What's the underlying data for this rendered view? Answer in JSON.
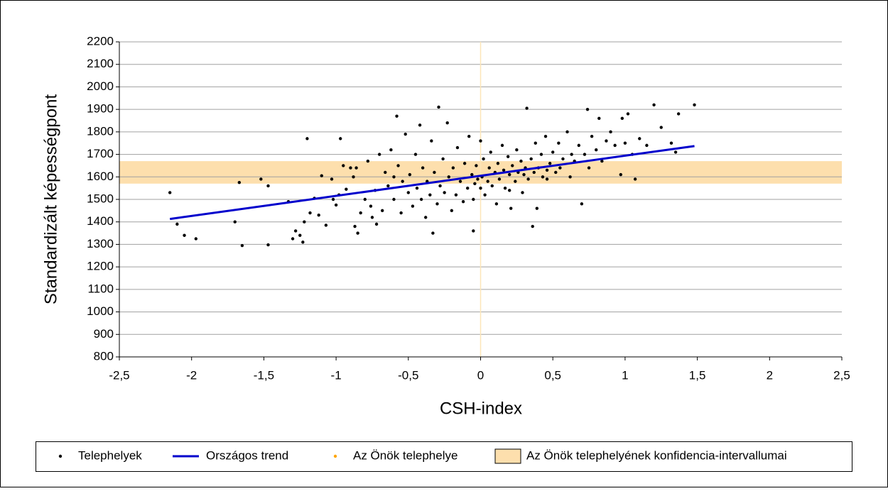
{
  "chart_data": {
    "type": "scatter",
    "xlabel": "CSH-index",
    "ylabel": "Standardizált képességpont",
    "xlim": [
      -2.5,
      2.5
    ],
    "ylim": [
      800,
      2200
    ],
    "xticks": [
      {
        "value": -2.5,
        "label": "-2,5"
      },
      -2,
      {
        "value": -1.5,
        "label": "-1,5"
      },
      -1,
      {
        "value": -0.5,
        "label": "-0,5"
      },
      0,
      {
        "value": 0.5,
        "label": "0,5"
      },
      1,
      {
        "value": 1.5,
        "label": "1,5"
      },
      2,
      {
        "value": 2.5,
        "label": "2,5"
      }
    ],
    "yticks": [
      800,
      900,
      1000,
      1100,
      1200,
      1300,
      1400,
      1500,
      1600,
      1700,
      1800,
      1900,
      2000,
      2100,
      2200
    ],
    "grid": true,
    "reference_x": 0,
    "reference_color": "#fde6b8",
    "band": {
      "name": "Az Önök telephelyének konfidencia-intervallumai",
      "color": "#fddfad",
      "range": [
        1570,
        1670
      ]
    },
    "series": [
      {
        "name": "Telephelyek",
        "color": "#000000",
        "style": "points",
        "x": [
          -2.15,
          -2.1,
          -2.05,
          -1.97,
          -1.7,
          -1.67,
          -1.65,
          -1.52,
          -1.47,
          -1.47,
          -1.33,
          -1.3,
          -1.28,
          -1.25,
          -1.23,
          -1.22,
          -1.2,
          -1.18,
          -1.15,
          -1.12,
          -1.1,
          -1.07,
          -1.03,
          -1.02,
          -1.0,
          -0.98,
          -0.97,
          -0.95,
          -0.93,
          -0.9,
          -0.88,
          -0.87,
          -0.85,
          -0.83,
          -0.8,
          -0.78,
          -0.76,
          -0.75,
          -0.73,
          -0.72,
          -0.7,
          -0.68,
          -0.66,
          -0.64,
          -0.62,
          -0.6,
          -0.58,
          -0.57,
          -0.55,
          -0.54,
          -0.52,
          -0.5,
          -0.49,
          -0.47,
          -0.45,
          -0.44,
          -0.42,
          -0.41,
          -0.4,
          -0.38,
          -0.37,
          -0.35,
          -0.34,
          -0.32,
          -0.3,
          -0.29,
          -0.28,
          -0.26,
          -0.25,
          -0.23,
          -0.22,
          -0.2,
          -0.19,
          -0.17,
          -0.16,
          -0.14,
          -0.12,
          -0.11,
          -0.09,
          -0.08,
          -0.06,
          -0.05,
          -0.04,
          -0.03,
          -0.02,
          0.0,
          0.0,
          0.01,
          0.02,
          0.03,
          0.05,
          0.06,
          0.07,
          0.08,
          0.1,
          0.11,
          0.12,
          0.13,
          0.15,
          0.16,
          0.17,
          0.19,
          0.2,
          0.21,
          0.22,
          0.24,
          0.25,
          0.26,
          0.28,
          0.29,
          0.3,
          0.31,
          0.32,
          0.33,
          0.35,
          0.36,
          0.37,
          0.38,
          0.39,
          0.4,
          0.42,
          0.43,
          0.45,
          0.46,
          0.48,
          0.5,
          0.52,
          0.54,
          0.55,
          0.57,
          0.6,
          0.62,
          0.63,
          0.65,
          0.68,
          0.7,
          0.72,
          0.74,
          0.75,
          0.77,
          0.8,
          0.82,
          0.84,
          0.87,
          0.9,
          0.93,
          0.97,
          0.98,
          1.0,
          1.02,
          1.05,
          1.07,
          1.1,
          1.15,
          1.2,
          1.25,
          1.32,
          1.35,
          1.37,
          1.48,
          -0.86,
          -0.6,
          -0.33,
          -0.05,
          0.2,
          0.46
        ],
        "y": [
          1530,
          1390,
          1340,
          1325,
          1400,
          1575,
          1295,
          1590,
          1560,
          1298,
          1490,
          1325,
          1360,
          1340,
          1310,
          1400,
          1770,
          1440,
          1505,
          1430,
          1605,
          1385,
          1590,
          1500,
          1475,
          1520,
          1770,
          1650,
          1545,
          1640,
          1600,
          1380,
          1350,
          1440,
          1500,
          1670,
          1470,
          1420,
          1540,
          1390,
          1700,
          1450,
          1620,
          1560,
          1720,
          1500,
          1870,
          1650,
          1440,
          1580,
          1790,
          1530,
          1610,
          1470,
          1700,
          1550,
          1830,
          1500,
          1640,
          1420,
          1580,
          1520,
          1760,
          1620,
          1480,
          1910,
          1560,
          1680,
          1530,
          1840,
          1600,
          1450,
          1640,
          1520,
          1730,
          1580,
          1490,
          1660,
          1550,
          1780,
          1610,
          1500,
          1570,
          1650,
          1590,
          1760,
          1550,
          1600,
          1680,
          1520,
          1580,
          1640,
          1710,
          1560,
          1620,
          1480,
          1660,
          1590,
          1740,
          1630,
          1550,
          1690,
          1610,
          1460,
          1650,
          1580,
          1720,
          1620,
          1670,
          1530,
          1610,
          1640,
          1905,
          1590,
          1680,
          1380,
          1620,
          1750,
          1460,
          1640,
          1700,
          1600,
          1780,
          1630,
          1660,
          1710,
          1620,
          1750,
          1640,
          1680,
          1800,
          1600,
          1700,
          1670,
          1740,
          1480,
          1700,
          1900,
          1640,
          1780,
          1720,
          1860,
          1670,
          1760,
          1800,
          1740,
          1610,
          1860,
          1750,
          1880,
          1700,
          1590,
          1770,
          1740,
          1920,
          1820,
          1750,
          1710,
          1880,
          1920,
          1640,
          1600,
          1350,
          1360,
          1540,
          1590
        ]
      },
      {
        "name": "Országos trend",
        "color": "#0000cc",
        "style": "line",
        "x": [
          -2.15,
          1.48
        ],
        "y": [
          1413,
          1737
        ]
      },
      {
        "name": "Az Önök telephelye",
        "color": "#ffa500",
        "style": "points",
        "x": [],
        "y": []
      }
    ]
  }
}
